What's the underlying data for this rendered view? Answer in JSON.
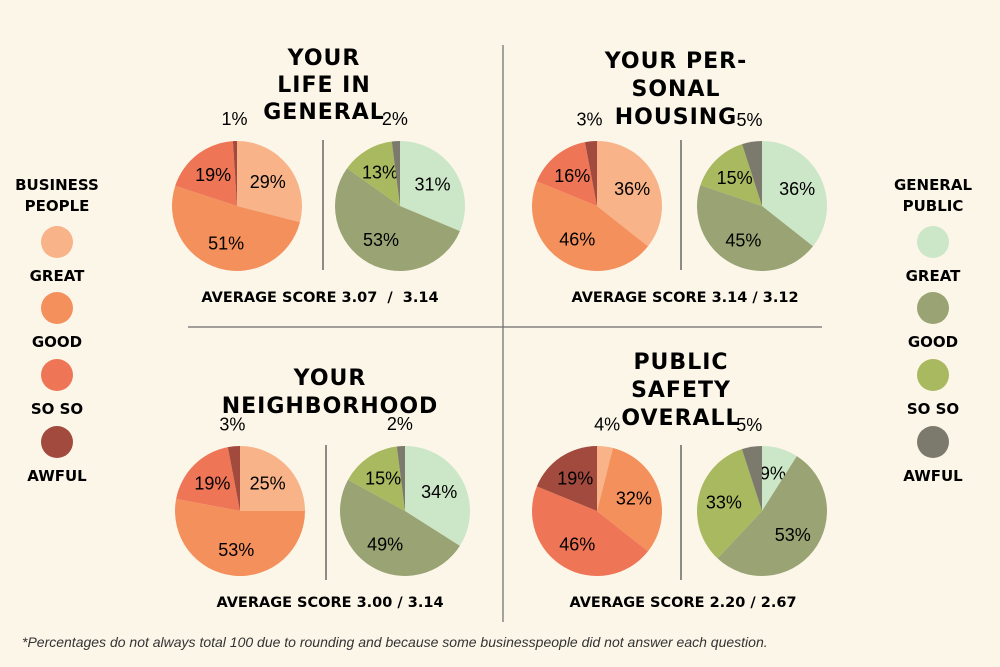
{
  "colors": {
    "background": "#fcf6e9",
    "business": {
      "great": "#f8b389",
      "good": "#f4905c",
      "so_so": "#ef7557",
      "awful": "#a14a3d"
    },
    "public": {
      "great": "#cce6c8",
      "good": "#9aa373",
      "so_so": "#a9b95f",
      "awful": "#7b7a6c"
    }
  },
  "legend_left": {
    "title_lines": [
      "BUSINESS",
      "PEOPLE"
    ],
    "items": [
      {
        "label": "GREAT",
        "color": "#f8b389"
      },
      {
        "label": "GOOD",
        "color": "#f4905c"
      },
      {
        "label": "SO SO",
        "color": "#ef7557"
      },
      {
        "label": "AWFUL",
        "color": "#a14a3d"
      }
    ]
  },
  "legend_right": {
    "title_lines": [
      "GENERAL",
      "PUBLIC"
    ],
    "items": [
      {
        "label": "GREAT",
        "color": "#cce6c8"
      },
      {
        "label": "GOOD",
        "color": "#9aa373"
      },
      {
        "label": "SO SO",
        "color": "#a9b95f"
      },
      {
        "label": "AWFUL",
        "color": "#7b7a6c"
      }
    ]
  },
  "chart_data": [
    {
      "type": "pie",
      "title_lines": [
        "YOUR",
        "LIFE IN",
        "GENERAL"
      ],
      "categories": [
        "GREAT",
        "GOOD",
        "SO SO",
        "AWFUL"
      ],
      "series": [
        {
          "name": "Business People",
          "values": [
            29,
            51,
            19,
            1
          ],
          "labels": [
            "29%",
            "51%",
            "19%",
            "1%"
          ]
        },
        {
          "name": "General Public",
          "values": [
            31,
            53,
            13,
            2
          ],
          "labels": [
            "31%",
            "53%",
            "13%",
            "2%"
          ]
        }
      ],
      "average_label": "AVERAGE SCORE 3.07  /  3.14"
    },
    {
      "type": "pie",
      "title_lines": [
        "YOUR PER-",
        "SONAL",
        "HOUSING"
      ],
      "categories": [
        "GREAT",
        "GOOD",
        "SO SO",
        "AWFUL"
      ],
      "series": [
        {
          "name": "Business People",
          "values": [
            36,
            46,
            16,
            3
          ],
          "labels": [
            "36%",
            "46%",
            "16%",
            "3%"
          ]
        },
        {
          "name": "General Public",
          "values": [
            36,
            45,
            15,
            5
          ],
          "labels": [
            "36%",
            "45%",
            "15%",
            "5%"
          ]
        }
      ],
      "average_label": "AVERAGE SCORE 3.14 / 3.12"
    },
    {
      "type": "pie",
      "title_lines": [
        "YOUR",
        "NEIGHBORHOOD"
      ],
      "categories": [
        "GREAT",
        "GOOD",
        "SO SO",
        "AWFUL"
      ],
      "series": [
        {
          "name": "Business People",
          "values": [
            25,
            53,
            19,
            3
          ],
          "labels": [
            "25%",
            "53%",
            "19%",
            "3%"
          ]
        },
        {
          "name": "General Public",
          "values": [
            34,
            49,
            15,
            2
          ],
          "labels": [
            "34%",
            "49%",
            "15%",
            "2%"
          ]
        }
      ],
      "average_label": "AVERAGE SCORE 3.00 / 3.14"
    },
    {
      "type": "pie",
      "title_lines": [
        "PUBLIC",
        "SAFETY",
        "OVERALL"
      ],
      "categories": [
        "GREAT",
        "GOOD",
        "SO SO",
        "AWFUL"
      ],
      "series": [
        {
          "name": "Business People",
          "values": [
            4,
            32,
            46,
            19
          ],
          "labels": [
            "4%",
            "32%",
            "46%",
            "19%"
          ]
        },
        {
          "name": "General Public",
          "values": [
            9,
            53,
            33,
            5
          ],
          "labels": [
            "9%",
            "53%",
            "33%",
            "5%"
          ]
        }
      ],
      "average_label": "AVERAGE SCORE 2.20 / 2.67"
    }
  ],
  "footnote": "*Percentages do not always total 100 due to rounding and because some businesspeople did not answer each question."
}
